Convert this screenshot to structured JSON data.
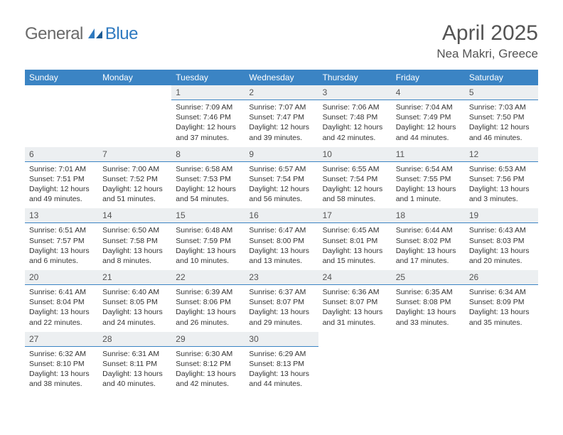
{
  "brand": {
    "part1": "General",
    "part2": "Blue"
  },
  "title": "April 2025",
  "location": "Nea Makri, Greece",
  "colors": {
    "header_bg": "#3b84c4",
    "header_text": "#ffffff",
    "daynum_bg": "#eceff1",
    "cell_border": "#3b84c4",
    "title_color": "#545454",
    "body_text": "#333333",
    "logo_gray": "#6a6a6a",
    "logo_blue": "#2f7ac0"
  },
  "weekdays": [
    "Sunday",
    "Monday",
    "Tuesday",
    "Wednesday",
    "Thursday",
    "Friday",
    "Saturday"
  ],
  "weeks": [
    [
      null,
      null,
      {
        "day": "1",
        "sunrise": "Sunrise: 7:09 AM",
        "sunset": "Sunset: 7:46 PM",
        "daylight": "Daylight: 12 hours and 37 minutes."
      },
      {
        "day": "2",
        "sunrise": "Sunrise: 7:07 AM",
        "sunset": "Sunset: 7:47 PM",
        "daylight": "Daylight: 12 hours and 39 minutes."
      },
      {
        "day": "3",
        "sunrise": "Sunrise: 7:06 AM",
        "sunset": "Sunset: 7:48 PM",
        "daylight": "Daylight: 12 hours and 42 minutes."
      },
      {
        "day": "4",
        "sunrise": "Sunrise: 7:04 AM",
        "sunset": "Sunset: 7:49 PM",
        "daylight": "Daylight: 12 hours and 44 minutes."
      },
      {
        "day": "5",
        "sunrise": "Sunrise: 7:03 AM",
        "sunset": "Sunset: 7:50 PM",
        "daylight": "Daylight: 12 hours and 46 minutes."
      }
    ],
    [
      {
        "day": "6",
        "sunrise": "Sunrise: 7:01 AM",
        "sunset": "Sunset: 7:51 PM",
        "daylight": "Daylight: 12 hours and 49 minutes."
      },
      {
        "day": "7",
        "sunrise": "Sunrise: 7:00 AM",
        "sunset": "Sunset: 7:52 PM",
        "daylight": "Daylight: 12 hours and 51 minutes."
      },
      {
        "day": "8",
        "sunrise": "Sunrise: 6:58 AM",
        "sunset": "Sunset: 7:53 PM",
        "daylight": "Daylight: 12 hours and 54 minutes."
      },
      {
        "day": "9",
        "sunrise": "Sunrise: 6:57 AM",
        "sunset": "Sunset: 7:54 PM",
        "daylight": "Daylight: 12 hours and 56 minutes."
      },
      {
        "day": "10",
        "sunrise": "Sunrise: 6:55 AM",
        "sunset": "Sunset: 7:54 PM",
        "daylight": "Daylight: 12 hours and 58 minutes."
      },
      {
        "day": "11",
        "sunrise": "Sunrise: 6:54 AM",
        "sunset": "Sunset: 7:55 PM",
        "daylight": "Daylight: 13 hours and 1 minute."
      },
      {
        "day": "12",
        "sunrise": "Sunrise: 6:53 AM",
        "sunset": "Sunset: 7:56 PM",
        "daylight": "Daylight: 13 hours and 3 minutes."
      }
    ],
    [
      {
        "day": "13",
        "sunrise": "Sunrise: 6:51 AM",
        "sunset": "Sunset: 7:57 PM",
        "daylight": "Daylight: 13 hours and 6 minutes."
      },
      {
        "day": "14",
        "sunrise": "Sunrise: 6:50 AM",
        "sunset": "Sunset: 7:58 PM",
        "daylight": "Daylight: 13 hours and 8 minutes."
      },
      {
        "day": "15",
        "sunrise": "Sunrise: 6:48 AM",
        "sunset": "Sunset: 7:59 PM",
        "daylight": "Daylight: 13 hours and 10 minutes."
      },
      {
        "day": "16",
        "sunrise": "Sunrise: 6:47 AM",
        "sunset": "Sunset: 8:00 PM",
        "daylight": "Daylight: 13 hours and 13 minutes."
      },
      {
        "day": "17",
        "sunrise": "Sunrise: 6:45 AM",
        "sunset": "Sunset: 8:01 PM",
        "daylight": "Daylight: 13 hours and 15 minutes."
      },
      {
        "day": "18",
        "sunrise": "Sunrise: 6:44 AM",
        "sunset": "Sunset: 8:02 PM",
        "daylight": "Daylight: 13 hours and 17 minutes."
      },
      {
        "day": "19",
        "sunrise": "Sunrise: 6:43 AM",
        "sunset": "Sunset: 8:03 PM",
        "daylight": "Daylight: 13 hours and 20 minutes."
      }
    ],
    [
      {
        "day": "20",
        "sunrise": "Sunrise: 6:41 AM",
        "sunset": "Sunset: 8:04 PM",
        "daylight": "Daylight: 13 hours and 22 minutes."
      },
      {
        "day": "21",
        "sunrise": "Sunrise: 6:40 AM",
        "sunset": "Sunset: 8:05 PM",
        "daylight": "Daylight: 13 hours and 24 minutes."
      },
      {
        "day": "22",
        "sunrise": "Sunrise: 6:39 AM",
        "sunset": "Sunset: 8:06 PM",
        "daylight": "Daylight: 13 hours and 26 minutes."
      },
      {
        "day": "23",
        "sunrise": "Sunrise: 6:37 AM",
        "sunset": "Sunset: 8:07 PM",
        "daylight": "Daylight: 13 hours and 29 minutes."
      },
      {
        "day": "24",
        "sunrise": "Sunrise: 6:36 AM",
        "sunset": "Sunset: 8:07 PM",
        "daylight": "Daylight: 13 hours and 31 minutes."
      },
      {
        "day": "25",
        "sunrise": "Sunrise: 6:35 AM",
        "sunset": "Sunset: 8:08 PM",
        "daylight": "Daylight: 13 hours and 33 minutes."
      },
      {
        "day": "26",
        "sunrise": "Sunrise: 6:34 AM",
        "sunset": "Sunset: 8:09 PM",
        "daylight": "Daylight: 13 hours and 35 minutes."
      }
    ],
    [
      {
        "day": "27",
        "sunrise": "Sunrise: 6:32 AM",
        "sunset": "Sunset: 8:10 PM",
        "daylight": "Daylight: 13 hours and 38 minutes."
      },
      {
        "day": "28",
        "sunrise": "Sunrise: 6:31 AM",
        "sunset": "Sunset: 8:11 PM",
        "daylight": "Daylight: 13 hours and 40 minutes."
      },
      {
        "day": "29",
        "sunrise": "Sunrise: 6:30 AM",
        "sunset": "Sunset: 8:12 PM",
        "daylight": "Daylight: 13 hours and 42 minutes."
      },
      {
        "day": "30",
        "sunrise": "Sunrise: 6:29 AM",
        "sunset": "Sunset: 8:13 PM",
        "daylight": "Daylight: 13 hours and 44 minutes."
      },
      null,
      null,
      null
    ]
  ]
}
